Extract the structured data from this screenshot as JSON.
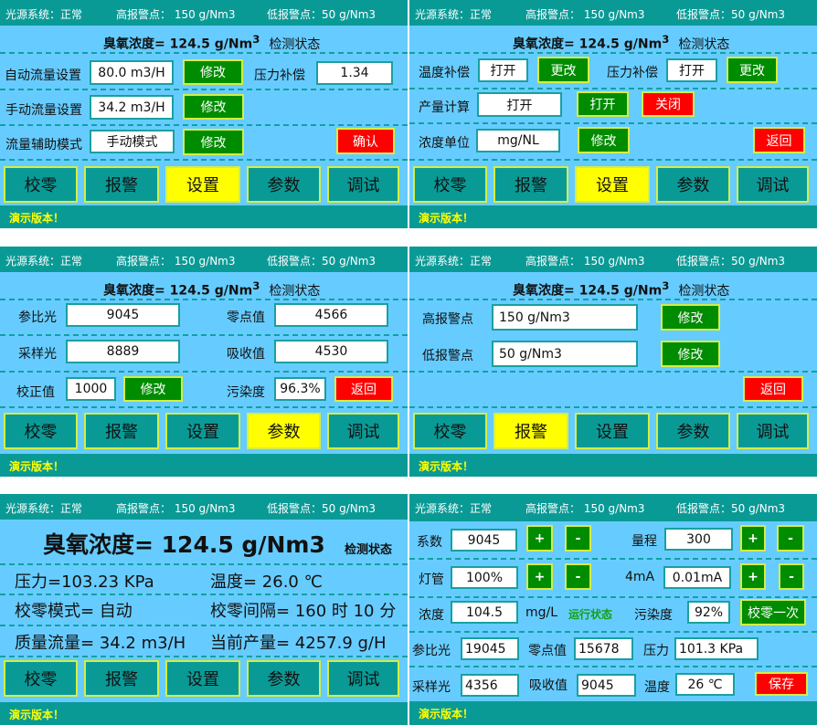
{
  "status_bar": {
    "light_source": "光源系统：正常",
    "high_alarm": "高报警点： 150 g/Nm3",
    "low_alarm": "低报警点：50 g/Nm3"
  },
  "concentration": {
    "label": "臭氧浓度=  124.5  g/Nm",
    "sup": "3",
    "state": "检测状态"
  },
  "nav": [
    "校零",
    "报警",
    "设置",
    "参数",
    "调试"
  ],
  "footer": "演示版本！",
  "colors": {
    "header": "#0a9a96",
    "body": "#66ccff",
    "active_tab": "#ffff00",
    "green_button": "#008c00",
    "red_button": "#ff0000",
    "footer_text": "#ffff00"
  },
  "p1": {
    "active_tab": 2,
    "auto_flow_label": "自动流量设置",
    "auto_flow_value": "80.0 m3/H",
    "pressure_comp_label": "压力补偿",
    "pressure_comp_value": "1.34",
    "manual_flow_label": "手动流量设置",
    "manual_flow_value": "34.2 m3/H",
    "flow_mode_label": "流量辅助模式",
    "flow_mode_value": "手动模式",
    "modify": "修改",
    "confirm": "确认"
  },
  "p2": {
    "active_tab": 2,
    "temp_comp_label": "温度补偿",
    "temp_comp_value": "打开",
    "pressure_comp_label": "压力补偿",
    "pressure_comp_value": "打开",
    "change": "更改",
    "output_calc_label": "产量计算",
    "output_calc_value": "打开",
    "open": "打开",
    "close": "关闭",
    "unit_label": "浓度单位",
    "unit_value": "mg/NL",
    "modify": "修改",
    "back": "返回"
  },
  "p3": {
    "active_tab": 3,
    "ref_light_label": "参比光",
    "ref_light_value": "9045",
    "zero_label": "零点值",
    "zero_value": "4566",
    "sample_light_label": "采样光",
    "sample_light_value": "8889",
    "absorb_label": "吸收值",
    "absorb_value": "4530",
    "correction_label": "校正值",
    "correction_value": "1000",
    "modify": "修改",
    "pollution_label": "污染度",
    "pollution_value": "96.3%",
    "back": "返回"
  },
  "p4": {
    "active_tab": 1,
    "high_label": "高报警点",
    "high_value": "150 g/Nm3",
    "low_label": "低报警点",
    "low_value": "50 g/Nm3",
    "modify": "修改",
    "back": "返回"
  },
  "p5": {
    "active_tab": -1,
    "big_concentration": "臭氧浓度= 124.5  g/Nm3",
    "state": "检测状态",
    "pressure": "压力=103.23 KPa",
    "temperature": "温度= 26.0 ℃",
    "zero_mode": "校零模式= 自动",
    "zero_interval": "校零间隔= 160 时 10 分",
    "mass_flow": "质量流量= 34.2 m3/H",
    "current_output": "当前产量= 4257.9 g/H"
  },
  "p6": {
    "coef_label": "系数",
    "coef_value": "9045",
    "range_label": "量程",
    "range_value": "300",
    "lamp_label": "灯管",
    "lamp_value": "100%",
    "ma_label": "4mA",
    "ma_value": "0.01mA",
    "conc_label": "浓度",
    "conc_value": "104.5",
    "conc_unit": "mg/L",
    "run_state": "运行状态",
    "pollution_label": "污染度",
    "pollution_value": "92%",
    "zero_once": "校零一次",
    "ref_light_label": "参比光",
    "ref_light_value": "19045",
    "zero_label": "零点值",
    "zero_value": "15678",
    "pressure_label": "压力",
    "pressure_value": "101.3 KPa",
    "sample_light_label": "采样光",
    "sample_light_value": "4356",
    "absorb_label": "吸收值",
    "absorb_value": "9045",
    "temp_label": "温度",
    "temp_value": "26 ℃",
    "plus": "+",
    "minus": "-",
    "save": "保存"
  }
}
